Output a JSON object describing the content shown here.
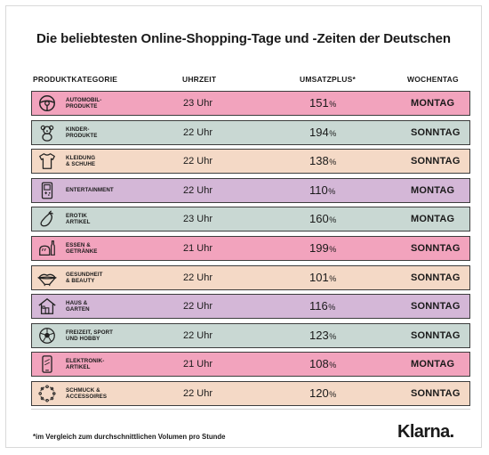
{
  "chart_data": {
    "type": "table",
    "title": "Die beliebtesten Online-Shopping-Tage und -Zeiten der Deutschen",
    "columns": [
      "PRODUKTKATEGORIE",
      "UHRZEIT",
      "UMSATZPLUS*",
      "WOCHENTAG"
    ],
    "rows": [
      {
        "category": "AUTOMOBIL-\nPRODUKTE",
        "time": "23 Uhr",
        "plus": "151",
        "day": "MONTAG",
        "color": "#f2a3bd",
        "icon": "steering-wheel-icon"
      },
      {
        "category": "KINDER-\nPRODUKTE",
        "time": "22 Uhr",
        "plus": "194",
        "day": "SONNTAG",
        "color": "#c9d8d3",
        "icon": "teddy-bear-icon"
      },
      {
        "category": "KLEIDUNG\n& SCHUHE",
        "time": "22 Uhr",
        "plus": "138",
        "day": "SONNTAG",
        "color": "#f4d9c6",
        "icon": "tshirt-icon"
      },
      {
        "category": "ENTERTAINMENT",
        "time": "22 Uhr",
        "plus": "110",
        "day": "MONTAG",
        "color": "#d4b7d7",
        "icon": "game-console-icon"
      },
      {
        "category": "EROTIK\nARTIKEL",
        "time": "23 Uhr",
        "plus": "160",
        "day": "MONTAG",
        "color": "#c9d8d3",
        "icon": "eggplant-icon"
      },
      {
        "category": "ESSEN &\nGETRÄNKE",
        "time": "21 Uhr",
        "plus": "199",
        "day": "SONNTAG",
        "color": "#f2a3bd",
        "icon": "bread-bottle-icon"
      },
      {
        "category": "GESUNDHEIT\n& BEAUTY",
        "time": "22 Uhr",
        "plus": "101",
        "day": "SONNTAG",
        "color": "#f4d9c6",
        "icon": "lips-icon"
      },
      {
        "category": "HAUS &\nGARTEN",
        "time": "22 Uhr",
        "plus": "116",
        "day": "SONNTAG",
        "color": "#d4b7d7",
        "icon": "house-icon"
      },
      {
        "category": "FREIZEIT, SPORT\nUND HOBBY",
        "time": "22 Uhr",
        "plus": "123",
        "day": "SONNTAG",
        "color": "#c9d8d3",
        "icon": "soccer-ball-icon"
      },
      {
        "category": "ELEKTRONIK-\nARTIKEL",
        "time": "21 Uhr",
        "plus": "108",
        "day": "MONTAG",
        "color": "#f2a3bd",
        "icon": "smartphone-icon"
      },
      {
        "category": "SCHMUCK &\nACCESSOIRES",
        "time": "22 Uhr",
        "plus": "120",
        "day": "SONNTAG",
        "color": "#f4d9c6",
        "icon": "necklace-icon"
      }
    ],
    "percent_sign": "%",
    "footnote": "*im Vergleich zum durchschnittlichen Volumen pro Stunde"
  },
  "brand": {
    "logo_text": "Klarna."
  }
}
